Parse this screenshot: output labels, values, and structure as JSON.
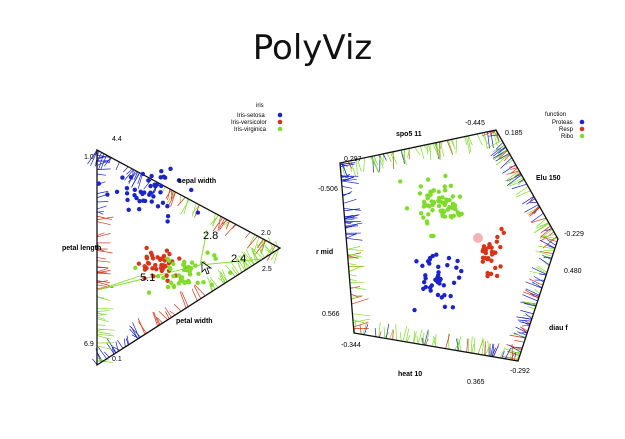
{
  "title": "PolyViz",
  "chart_data": [
    {
      "type": "scatter",
      "legend": {
        "title": "iris",
        "entries": [
          {
            "name": "Iris-setosa",
            "color": "#1a24c8"
          },
          {
            "name": "Iris-versicolor",
            "color": "#d8341a"
          },
          {
            "name": "Iris-virginica",
            "color": "#7fdc2a"
          }
        ]
      },
      "axes": [
        {
          "name": "sepal width",
          "min": "2.0",
          "max": "4.4"
        },
        {
          "name": "petal width",
          "min": "0.1",
          "max": "2.5"
        },
        {
          "name": "petal length",
          "min": "1.0",
          "max": "6.9"
        }
      ],
      "annotations": [
        "2.8",
        "2.4",
        "5.1"
      ]
    },
    {
      "type": "scatter",
      "legend": {
        "title": "function",
        "entries": [
          {
            "name": "Proteas",
            "color": "#1a24c8"
          },
          {
            "name": "Resp",
            "color": "#d8341a"
          },
          {
            "name": "Ribo",
            "color": "#7fdc2a"
          }
        ]
      },
      "axes": [
        {
          "name": "spo5 11",
          "min": "0.297",
          "max": "-0.445"
        },
        {
          "name": "Elu 150",
          "min": "0.185",
          "max": "-0.229"
        },
        {
          "name": "diau f",
          "min": "0.480",
          "max": "-0.292"
        },
        {
          "name": "heat 10",
          "min": "0.365",
          "max": "-0.344"
        },
        {
          "name": "r mid",
          "min": "0.566",
          "max": "-0.506"
        }
      ]
    }
  ]
}
